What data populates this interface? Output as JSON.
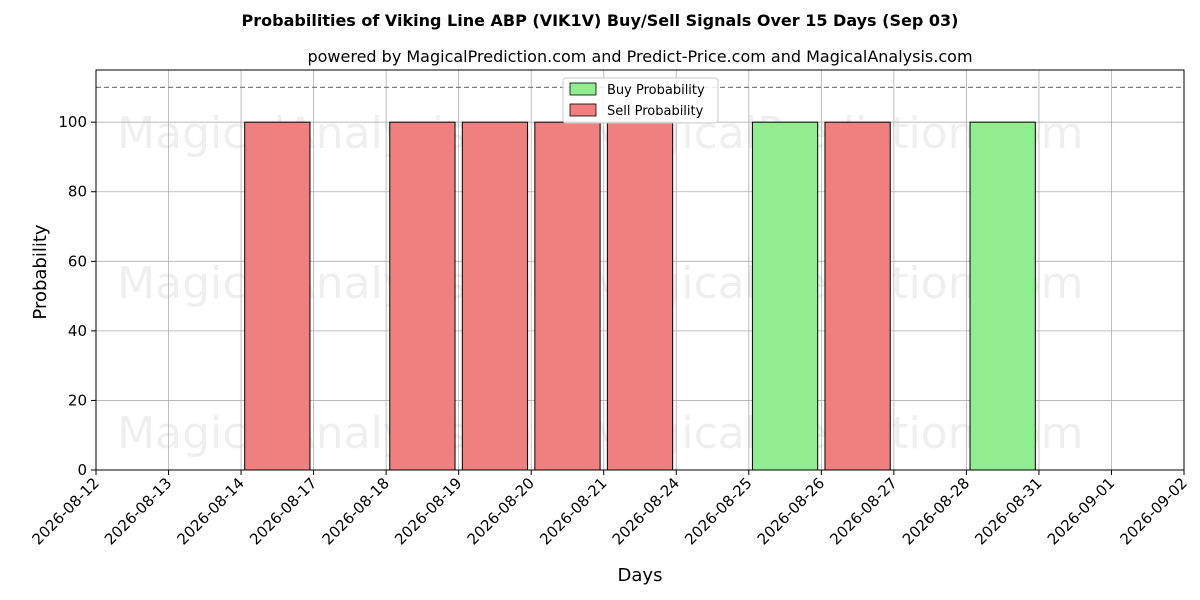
{
  "chart_data": {
    "type": "bar",
    "title": "Probabilities of Viking Line ABP (VIK1V) Buy/Sell Signals Over 15 Days (Sep 03)",
    "subtitle": "powered by MagicalPrediction.com and Predict-Price.com and MagicalAnalysis.com",
    "xlabel": "Days",
    "ylabel": "Probability",
    "ylim": [
      0,
      115
    ],
    "yticks": [
      0,
      20,
      40,
      60,
      80,
      100
    ],
    "threshold_line": 110,
    "grid": true,
    "legend_position": "top-center",
    "categories": [
      "2026-08-12",
      "2026-08-13",
      "2026-08-14",
      "2026-08-17",
      "2026-08-18",
      "2026-08-19",
      "2026-08-20",
      "2026-08-21",
      "2026-08-24",
      "2026-08-25",
      "2026-08-26",
      "2026-08-27",
      "2026-08-28",
      "2026-08-31",
      "2026-09-01",
      "2026-09-02"
    ],
    "series": [
      {
        "name": "Buy Probability",
        "color": "#90ee90",
        "values": [
          0,
          0,
          0,
          0,
          0,
          0,
          0,
          0,
          0,
          100,
          0,
          0,
          100,
          0,
          0,
          0
        ]
      },
      {
        "name": "Sell Probability",
        "color": "#f08080",
        "values": [
          0,
          0,
          100,
          0,
          100,
          100,
          100,
          100,
          0,
          0,
          100,
          0,
          0,
          0,
          0,
          0
        ]
      }
    ]
  },
  "watermarks": [
    "MagicalAnalysis.com",
    "MagicalPrediction.com",
    "MagicalAnalysis.com",
    "MagicalPrediction.com",
    "MagicalAnalysis.com",
    "MagicalPrediction.com"
  ]
}
